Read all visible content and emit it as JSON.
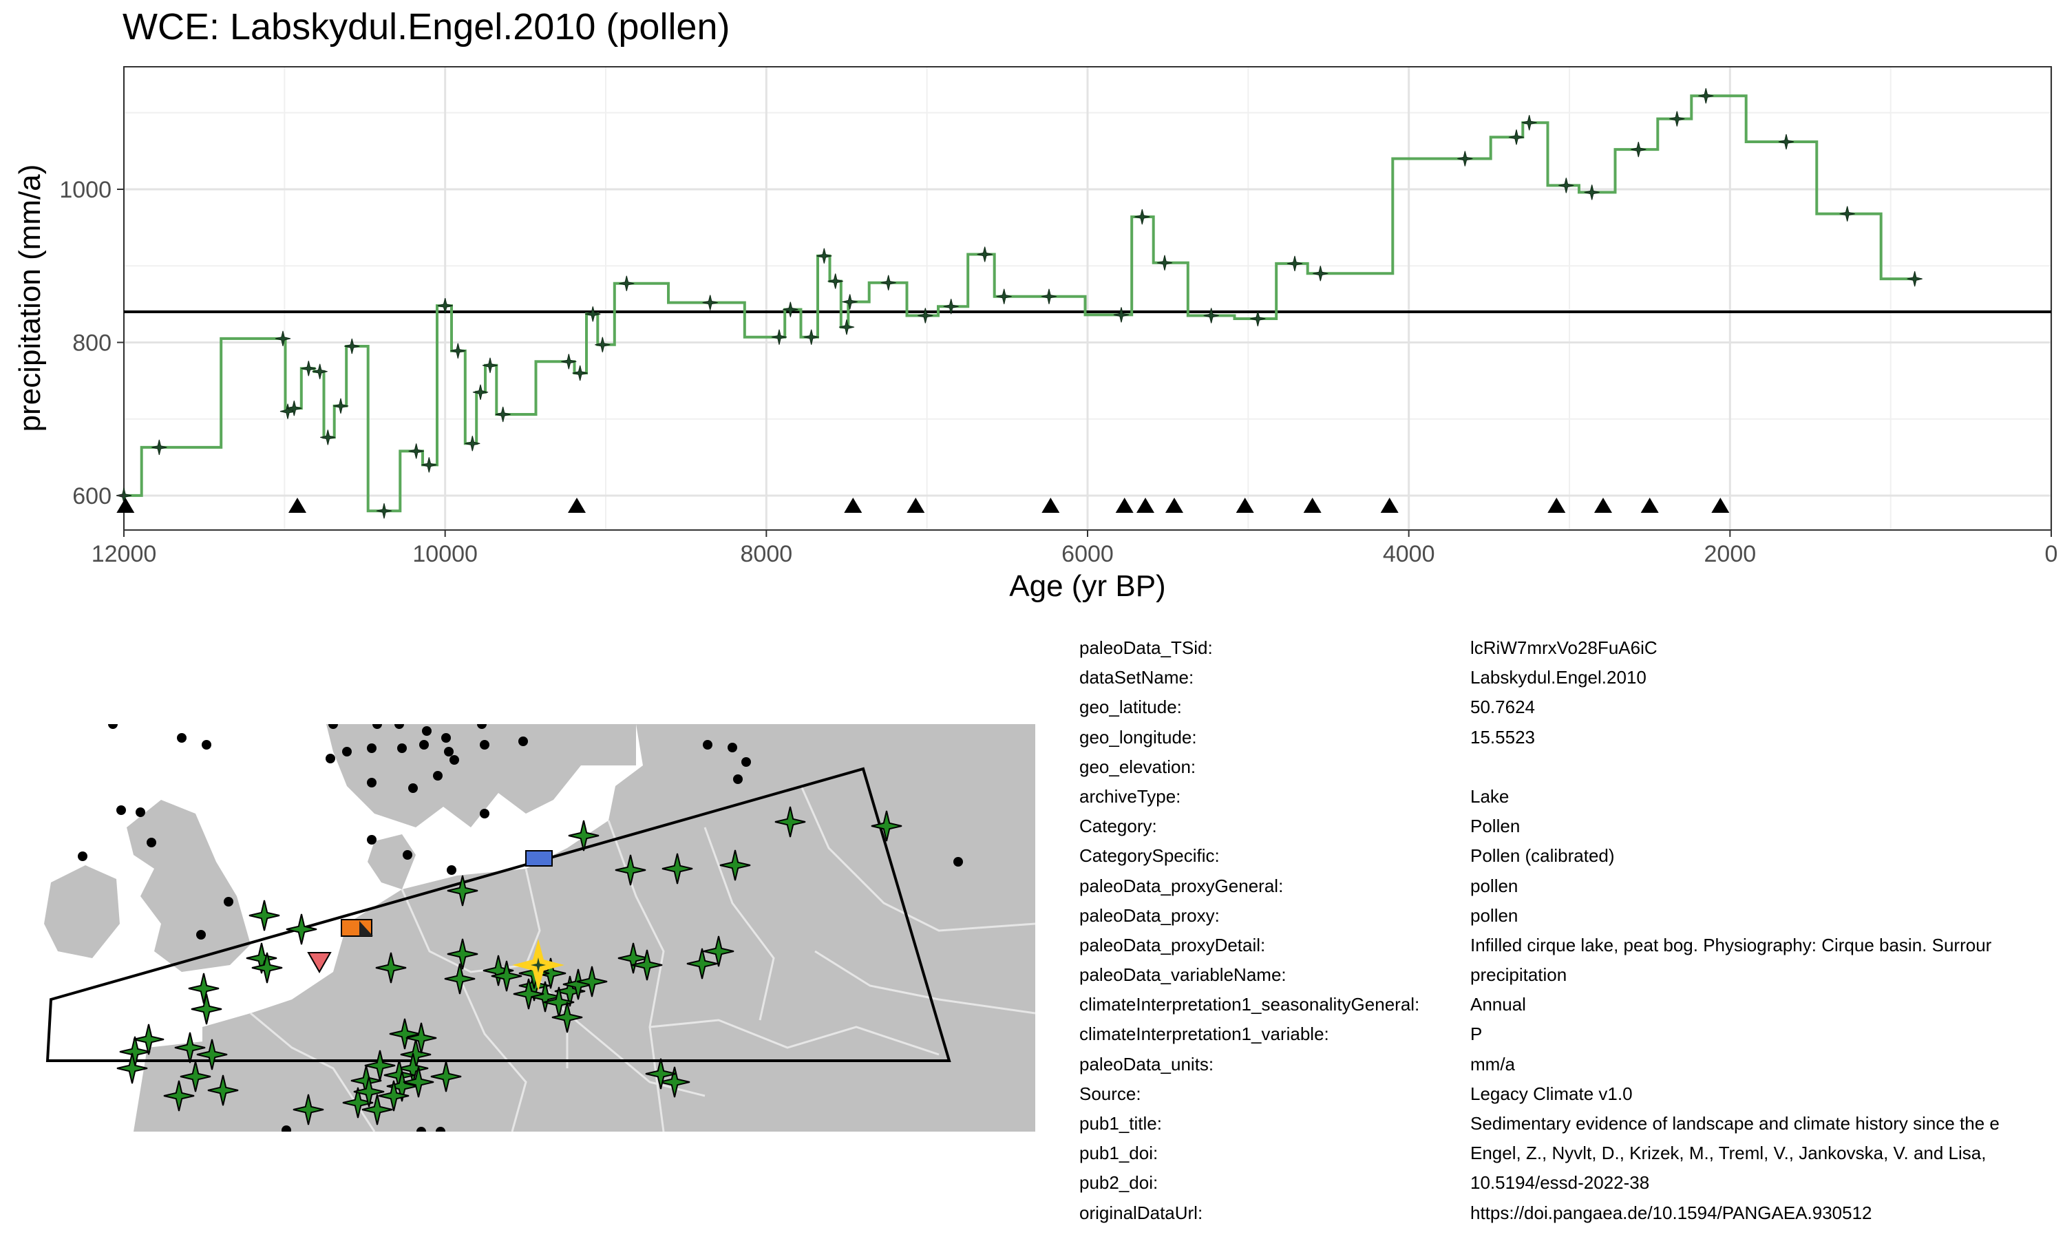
{
  "title": "WCE: Labskydul.Engel.2010 (pollen)",
  "chart_data": {
    "type": "line",
    "title": "WCE: Labskydul.Engel.2010 (pollen)",
    "xlabel": "Age (yr BP)",
    "ylabel": "precipitation (mm/a)",
    "xlim": [
      12000,
      0
    ],
    "ylim": [
      555,
      1160
    ],
    "x_ticks": [
      12000,
      10000,
      8000,
      6000,
      4000,
      2000,
      0
    ],
    "y_ticks": [
      600,
      800,
      1000
    ],
    "grid": true,
    "reference_line": 840,
    "series": [
      {
        "values": [
          {
            "x": 12000,
            "y": 600
          },
          {
            "x": 11780,
            "y": 663
          },
          {
            "x": 11010,
            "y": 805
          },
          {
            "x": 10980,
            "y": 710
          },
          {
            "x": 10940,
            "y": 714
          },
          {
            "x": 10850,
            "y": 766
          },
          {
            "x": 10780,
            "y": 762
          },
          {
            "x": 10730,
            "y": 676
          },
          {
            "x": 10650,
            "y": 717
          },
          {
            "x": 10580,
            "y": 795
          },
          {
            "x": 10380,
            "y": 580
          },
          {
            "x": 10180,
            "y": 658
          },
          {
            "x": 10100,
            "y": 640
          },
          {
            "x": 10000,
            "y": 848
          },
          {
            "x": 9920,
            "y": 789
          },
          {
            "x": 9830,
            "y": 668
          },
          {
            "x": 9780,
            "y": 735
          },
          {
            "x": 9720,
            "y": 770
          },
          {
            "x": 9640,
            "y": 706
          },
          {
            "x": 9230,
            "y": 775
          },
          {
            "x": 9160,
            "y": 760
          },
          {
            "x": 9080,
            "y": 837
          },
          {
            "x": 9020,
            "y": 797
          },
          {
            "x": 8870,
            "y": 877
          },
          {
            "x": 8350,
            "y": 852
          },
          {
            "x": 7920,
            "y": 807
          },
          {
            "x": 7850,
            "y": 843
          },
          {
            "x": 7720,
            "y": 807
          },
          {
            "x": 7640,
            "y": 913
          },
          {
            "x": 7570,
            "y": 880
          },
          {
            "x": 7500,
            "y": 820
          },
          {
            "x": 7480,
            "y": 853
          },
          {
            "x": 7240,
            "y": 878
          },
          {
            "x": 7010,
            "y": 835
          },
          {
            "x": 6850,
            "y": 847
          },
          {
            "x": 6640,
            "y": 915
          },
          {
            "x": 6520,
            "y": 860
          },
          {
            "x": 6240,
            "y": 860
          },
          {
            "x": 5790,
            "y": 836
          },
          {
            "x": 5660,
            "y": 964
          },
          {
            "x": 5520,
            "y": 904
          },
          {
            "x": 5230,
            "y": 835
          },
          {
            "x": 4940,
            "y": 831
          },
          {
            "x": 4710,
            "y": 903
          },
          {
            "x": 4550,
            "y": 890
          },
          {
            "x": 3650,
            "y": 1040
          },
          {
            "x": 3330,
            "y": 1068
          },
          {
            "x": 3250,
            "y": 1087
          },
          {
            "x": 3020,
            "y": 1005
          },
          {
            "x": 2860,
            "y": 996
          },
          {
            "x": 2570,
            "y": 1052
          },
          {
            "x": 2330,
            "y": 1092
          },
          {
            "x": 2150,
            "y": 1122
          },
          {
            "x": 1650,
            "y": 1062
          },
          {
            "x": 1270,
            "y": 968
          },
          {
            "x": 850,
            "y": 883
          }
        ]
      }
    ],
    "chronology_markers_x": [
      11990,
      10920,
      9180,
      7460,
      7070,
      6230,
      5770,
      5640,
      5460,
      5020,
      4600,
      4120,
      3080,
      2790,
      2500,
      2060
    ]
  },
  "map": {
    "colors": {
      "land": "#c0c0c0",
      "borders": "#e6e6e6",
      "region_outline": "#000000",
      "green_star": "#228b22",
      "selected_star": "#ffd21e",
      "other_site": "#000000",
      "orange_marker": "#f07a1a",
      "red_marker": "#e8656a",
      "blue_marker": "#4b72d6"
    }
  },
  "metadata": [
    {
      "key": "paleoData_TSid:",
      "value": "lcRiW7mrxVo28FuA6iC"
    },
    {
      "key": "dataSetName:",
      "value": "Labskydul.Engel.2010"
    },
    {
      "key": "geo_latitude:",
      "value": "50.7624"
    },
    {
      "key": "geo_longitude:",
      "value": "15.5523"
    },
    {
      "key": "geo_elevation:",
      "value": ""
    },
    {
      "key": "archiveType:",
      "value": "Lake"
    },
    {
      "key": "Category:",
      "value": "Pollen"
    },
    {
      "key": "CategorySpecific:",
      "value": "Pollen (calibrated)"
    },
    {
      "key": "paleoData_proxyGeneral:",
      "value": "pollen"
    },
    {
      "key": "paleoData_proxy:",
      "value": "pollen"
    },
    {
      "key": "paleoData_proxyDetail:",
      "value": "Infilled cirque lake, peat bog. Physiography: Cirque basin. Surrour"
    },
    {
      "key": "paleoData_variableName:",
      "value": "precipitation"
    },
    {
      "key": "climateInterpretation1_seasonalityGeneral:",
      "value": "Annual"
    },
    {
      "key": "climateInterpretation1_variable:",
      "value": "P"
    },
    {
      "key": "paleoData_units:",
      "value": "mm/a"
    },
    {
      "key": "Source:",
      "value": "Legacy Climate v1.0"
    },
    {
      "key": "pub1_title:",
      "value": "Sedimentary evidence of landscape and climate history since the e"
    },
    {
      "key": "pub1_doi:",
      "value": "Engel, Z., Nyvlt, D., Krizek, M., Treml, V., Jankovska, V. and Lisa,"
    },
    {
      "key": "pub2_doi:",
      "value": "10.5194/essd-2022-38"
    },
    {
      "key": "originalDataUrl:",
      "value": "https://doi.pangaea.de/10.1594/PANGAEA.930512"
    }
  ]
}
